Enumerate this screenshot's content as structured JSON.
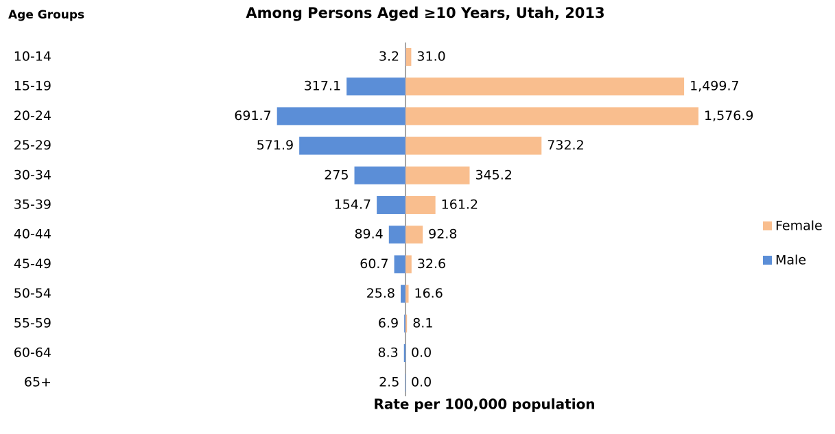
{
  "chart_data": {
    "type": "pyramid",
    "title": "Among Persons Aged ≥10 Years, Utah, 2013",
    "y_label": "Age Groups",
    "x_label": "Rate per 100,000 population",
    "categories": [
      "10-14",
      "15-19",
      "20-24",
      "25-29",
      "30-34",
      "35-39",
      "40-44",
      "45-49",
      "50-54",
      "55-59",
      "60-64",
      "65+"
    ],
    "series": [
      {
        "name": "Female",
        "color": "#f9be8e",
        "side": "right",
        "values": [
          31.0,
          1499.7,
          1576.9,
          732.2,
          345.2,
          161.2,
          92.8,
          32.6,
          16.6,
          8.1,
          0.0,
          0.0
        ],
        "value_labels": [
          "31.0",
          "1,499.7",
          "1,576.9",
          "732.2",
          "345.2",
          "161.2",
          "92.8",
          "32.6",
          "16.6",
          "8.1",
          "0.0",
          "0.0"
        ]
      },
      {
        "name": "Male",
        "color": "#5b8ed7",
        "side": "left",
        "values": [
          3.2,
          317.1,
          691.7,
          571.9,
          275,
          154.7,
          89.4,
          60.7,
          25.8,
          6.9,
          8.3,
          2.5
        ]
      }
    ],
    "legend": "right"
  }
}
